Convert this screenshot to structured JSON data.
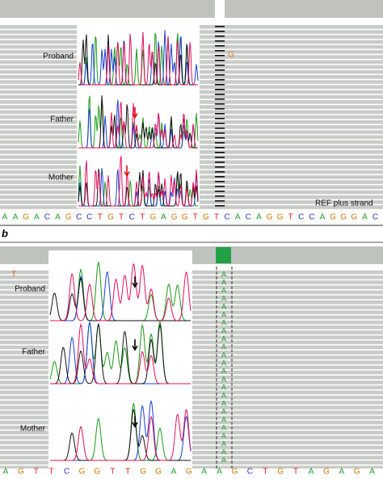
{
  "top_panel": {
    "labels": [
      "Proband",
      "Father",
      "Mother"
    ],
    "mismatch": "G",
    "strand_label": "REF plus strand",
    "reference": [
      "A",
      "A",
      "G",
      "A",
      "C",
      "A",
      "G",
      "C",
      "C",
      "T",
      "G",
      "T",
      "C",
      "T",
      "G",
      "A",
      "G",
      "G",
      "T",
      "G",
      "T",
      "C",
      "A",
      "C",
      "A",
      "G",
      "G",
      "T",
      "C",
      "C",
      "A",
      "G",
      "G",
      "G",
      "A",
      "C"
    ]
  },
  "bottom_panel": {
    "panel_label": "b",
    "labels": [
      "Proband",
      "Father",
      "Mother"
    ],
    "mismatch": "T",
    "reference": [
      "A",
      "G",
      "T",
      "T",
      "C",
      "G",
      "G",
      "T",
      "T",
      "G",
      "G",
      "A",
      "G",
      "A",
      "A",
      "G",
      "C",
      "T",
      "G",
      "T",
      "A",
      "G",
      "A",
      "G",
      "A"
    ],
    "read_bases": [
      "A",
      "A",
      "A",
      "A",
      "A",
      "A",
      "A",
      "A",
      "A",
      "A",
      "A",
      "A",
      "A",
      "A",
      "A",
      "A",
      "A",
      "A",
      "A",
      "A",
      "A",
      "A",
      "A",
      "A"
    ]
  }
}
